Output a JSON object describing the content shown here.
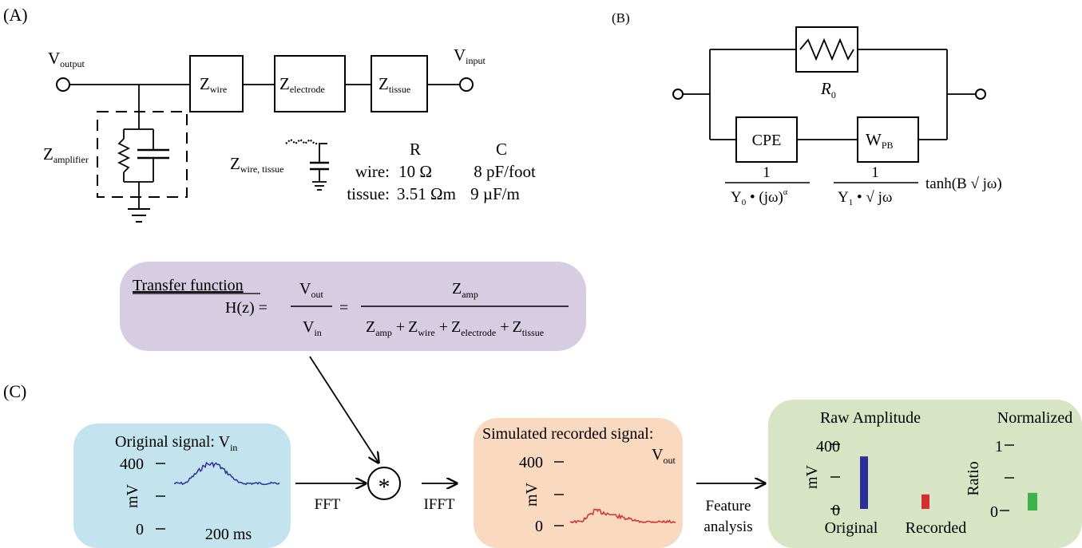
{
  "panel_a": {
    "label": "(A)",
    "v_output": {
      "main": "V",
      "sub": "output"
    },
    "v_input": {
      "main": "V",
      "sub": "input"
    },
    "z_wire": {
      "main": "Z",
      "sub": "wire"
    },
    "z_electrode": {
      "main": "Z",
      "sub": "electrode"
    },
    "z_tissue": {
      "main": "Z",
      "sub": "tissue"
    },
    "z_amplifier": {
      "main": "Z",
      "sub": "amplifier"
    },
    "z_wire_tissue": {
      "main": "Z",
      "sub": "wire, tissue"
    },
    "table": {
      "col_r": "R",
      "col_c": "C",
      "rows": [
        {
          "name": "wire:",
          "r": "10 Ω",
          "c": "8 pF/foot"
        },
        {
          "name": "tissue:",
          "r": "3.51 Ωm",
          "c": "9 µF/m"
        }
      ]
    }
  },
  "panel_b": {
    "label": "(B)",
    "r0": {
      "main": "R",
      "sub": "0"
    },
    "cpe": "CPE",
    "wpb": {
      "main": "W",
      "sub": "PB"
    },
    "cpe_formula": {
      "num": "1",
      "y": "Y",
      "y_sub": "0",
      "rest": " • (jω)",
      "sup": "α"
    },
    "wpb_formula": {
      "num": "1",
      "y": "Y",
      "y_sub": "1",
      "rest": " • √ jω",
      "tail": "tanh(B √ jω)"
    }
  },
  "transfer": {
    "title": "Transfer function",
    "h": "H(z) =",
    "eq": "=",
    "v_out": {
      "main": "V",
      "sub": "out"
    },
    "v_in": {
      "main": "V",
      "sub": "in"
    },
    "z_amp": {
      "main": "Z",
      "sub": "amp"
    },
    "den": [
      {
        "main": "Z",
        "sub": "amp"
      },
      {
        "main": "Z",
        "sub": "wire"
      },
      {
        "main": "Z",
        "sub": "electrode"
      },
      {
        "main": "Z",
        "sub": "tissue"
      }
    ],
    "plus": "+"
  },
  "panel_c": {
    "label": "(C)",
    "original": {
      "title": "Original signal:  V",
      "title_sub": "in",
      "ylabel": "mV",
      "ytick_top": "400",
      "ytick_bottom": "0",
      "scale": "200 ms"
    },
    "fft": "FFT",
    "ifft": "IFFT",
    "convolve": "*",
    "simulated": {
      "title": "Simulated recorded signal:",
      "v_out": {
        "main": "V",
        "sub": "out"
      },
      "ylabel": "mV",
      "ytick_top": "400",
      "ytick_bottom": "0"
    },
    "feature": {
      "line1": "Feature",
      "line2": "analysis"
    },
    "results": {
      "raw_title": "Raw Amplitude",
      "norm_title": "Normalized",
      "raw_ylabel": "mV",
      "norm_ylabel": "Ratio",
      "raw_ticks": [
        "400",
        "0"
      ],
      "norm_ticks": [
        "1",
        "0"
      ],
      "cat_original": "Original",
      "cat_recorded": "Recorded"
    }
  },
  "colors": {
    "transfer_bg": "#d6cde3",
    "original_bg": "#c3e4ef",
    "simulated_bg": "#f9d9bf",
    "results_bg": "#d8e5c4",
    "original_trace": "#2a2f9a",
    "recorded_trace": "#d32f2f",
    "bar_original": "#2a2f9a",
    "bar_recorded": "#d32f2f",
    "bar_normalized": "#3cb44b"
  },
  "chart_data": [
    {
      "type": "bar",
      "title": "Raw Amplitude",
      "ylabel": "mV",
      "categories": [
        "Original",
        "Recorded"
      ],
      "values": [
        325,
        90
      ],
      "ylim": [
        0,
        400
      ]
    },
    {
      "type": "bar",
      "title": "Normalized",
      "ylabel": "Ratio",
      "categories": [
        "Recorded"
      ],
      "values": [
        0.27
      ],
      "ylim": [
        0,
        1
      ]
    }
  ]
}
